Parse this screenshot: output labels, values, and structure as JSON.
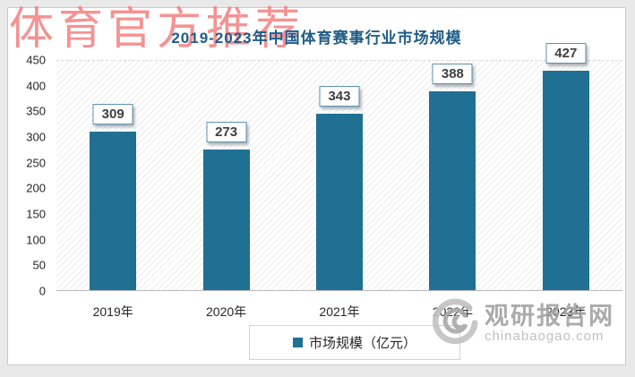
{
  "watermark": {
    "text": "体育官方推荐",
    "color": "#F47B7B"
  },
  "brand": {
    "name": "观研报告网",
    "domain": "chinabaogao.com",
    "logo": "swirl-logo"
  },
  "legend": {
    "items": [
      {
        "label": "市场规模（亿元）",
        "color": "#1F7092"
      }
    ]
  },
  "colors": {
    "bar": "#1F7092",
    "title": "#1E5C88",
    "value_box_border": "#5B93B0",
    "watermark_red": "#F47B7B",
    "brand_gray": "#A2A2A2",
    "axis_line": "#B9B9B9",
    "page_background": "#E9E9E9"
  },
  "chart_data": {
    "type": "bar",
    "title": "2019-2023年中国体育赛事行业市场规模",
    "categories": [
      "2019年",
      "2020年",
      "2021年",
      "2022年",
      "2023年"
    ],
    "values": [
      309,
      273,
      343,
      388,
      427
    ],
    "series": [
      {
        "name": "市场规模（亿元）",
        "values": [
          309,
          273,
          343,
          388,
          427
        ]
      }
    ],
    "xlabel": "",
    "ylabel": "",
    "ylim": [
      0,
      450
    ],
    "yticks": [
      0,
      50,
      100,
      150,
      200,
      250,
      300,
      350,
      400,
      450
    ],
    "grid": false,
    "legend_position": "bottom",
    "data_labels": true,
    "plot_background": "diagonal-hatch"
  }
}
